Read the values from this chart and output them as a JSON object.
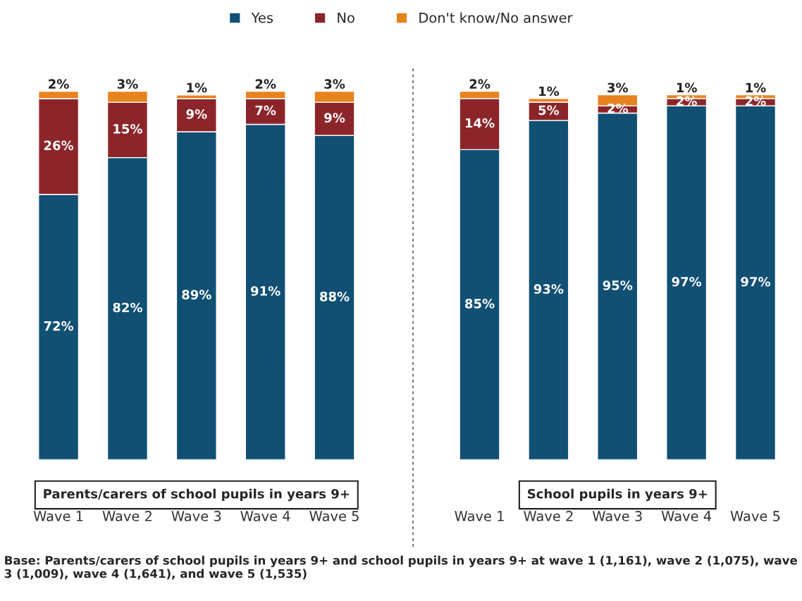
{
  "chart_data": [
    {
      "type": "bar",
      "title": "Parents/carers of school pupils in years 9+",
      "categories": [
        "Wave 1",
        "Wave 2",
        "Wave 3",
        "Wave 4",
        "Wave 5"
      ],
      "stacked": true,
      "legend": "top",
      "series": [
        {
          "name": "Yes",
          "color": "#114f73",
          "values": [
            72,
            82,
            89,
            91,
            88
          ],
          "value_labels": [
            "72%",
            "82%",
            "89%",
            "91%",
            "88%"
          ]
        },
        {
          "name": "No",
          "color": "#8b2529",
          "values": [
            26,
            15,
            9,
            7,
            9
          ],
          "value_labels": [
            "26%",
            "15%",
            "9%",
            "7%",
            "9%"
          ]
        },
        {
          "name": "Don't know/No answer",
          "color": "#e8821e",
          "values": [
            2,
            3,
            1,
            2,
            3
          ],
          "value_labels": [
            "2%",
            "3%",
            "1%",
            "2%",
            "3%"
          ]
        }
      ],
      "annotations": [
        "Base: Parents/carers of school pupils in years 9+ and school pupils in years 9+ at wave 1 (1,161), wave 2 (1,075), wave 3 (1,009), wave 4 (1,641), and wave 5 (1,535)"
      ]
    },
    {
      "type": "bar",
      "title": "School pupils in years 9+",
      "categories": [
        "Wave 1",
        "Wave 2",
        "Wave 3",
        "Wave 4",
        "Wave 5"
      ],
      "stacked": true,
      "series": [
        {
          "color": "#114f73",
          "values": [
            85,
            93,
            95,
            97,
            97
          ],
          "value_labels": [
            "85%",
            "93%",
            "95%",
            "97%",
            "97%"
          ]
        },
        {
          "color": "#8b2529",
          "values": [
            14,
            5,
            2,
            2,
            2
          ],
          "value_labels": [
            "14%",
            "5%",
            "2%",
            "2%",
            "2%"
          ]
        },
        {
          "color": "#e8821e",
          "values": [
            2,
            1,
            3,
            1,
            1
          ],
          "value_labels": [
            "2%",
            "1%",
            "3%",
            "1%",
            "1%"
          ]
        }
      ]
    }
  ]
}
